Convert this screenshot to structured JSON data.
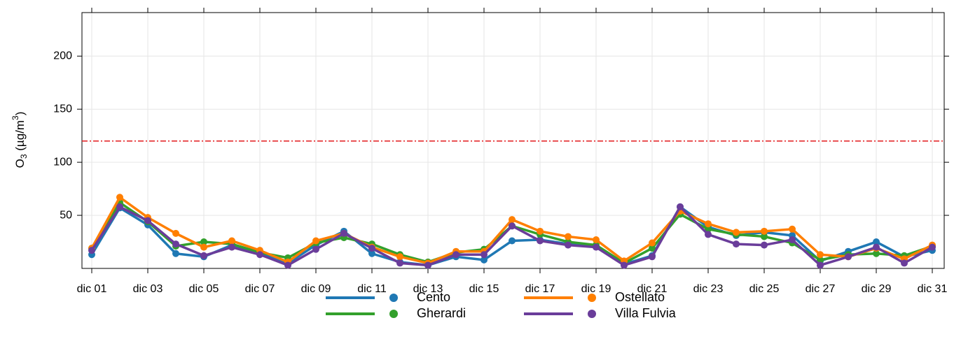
{
  "chart_data": {
    "type": "line",
    "y_label": {
      "base": "O",
      "sub": "3",
      "unit": " (µg/m",
      "sup": "3",
      "close": ")"
    },
    "categories": [
      "dic 01",
      null,
      "dic 03",
      null,
      "dic 05",
      null,
      "dic 07",
      null,
      "dic 09",
      null,
      "dic 11",
      null,
      "dic 13",
      null,
      "dic 15",
      null,
      "dic 17",
      null,
      "dic 19",
      null,
      "dic 21",
      null,
      "dic 23",
      null,
      "dic 25",
      null,
      "dic 27",
      null,
      "dic 29",
      null,
      "dic 31"
    ],
    "series": [
      {
        "name": "Cento",
        "color": "#1f78b4",
        "values": [
          13,
          57,
          41,
          14,
          11,
          22,
          14,
          5,
          22,
          35,
          14,
          6,
          3,
          11,
          8,
          26,
          27,
          23,
          21,
          4,
          12,
          58,
          39,
          31,
          34,
          31,
          7,
          16,
          25,
          11,
          17
        ]
      },
      {
        "name": "Gherardi",
        "color": "#33a02c",
        "values": [
          19,
          62,
          44,
          21,
          25,
          23,
          15,
          10,
          24,
          29,
          23,
          13,
          6,
          15,
          18,
          40,
          32,
          25,
          22,
          5,
          19,
          51,
          37,
          32,
          30,
          24,
          8,
          13,
          14,
          12,
          21
        ]
      },
      {
        "name": "Ostellato",
        "color": "#ff7f00",
        "values": [
          19,
          67,
          48,
          33,
          20,
          26,
          17,
          6,
          26,
          33,
          20,
          11,
          5,
          16,
          16,
          46,
          35,
          30,
          27,
          7,
          24,
          54,
          42,
          34,
          35,
          37,
          13,
          11,
          19,
          9,
          22
        ]
      },
      {
        "name": "Villa Fulvia",
        "color": "#6a3d9a",
        "values": [
          17,
          58,
          45,
          23,
          12,
          20,
          13,
          3,
          18,
          33,
          19,
          5,
          3,
          13,
          13,
          40,
          26,
          22,
          20,
          3,
          11,
          58,
          32,
          23,
          22,
          27,
          3,
          11,
          20,
          5,
          20
        ]
      }
    ],
    "threshold": 120,
    "threshold_color": "#e31a1c",
    "ylim": [
      0,
      241
    ],
    "yticks": [
      50,
      100,
      150,
      200
    ],
    "grid": true
  }
}
